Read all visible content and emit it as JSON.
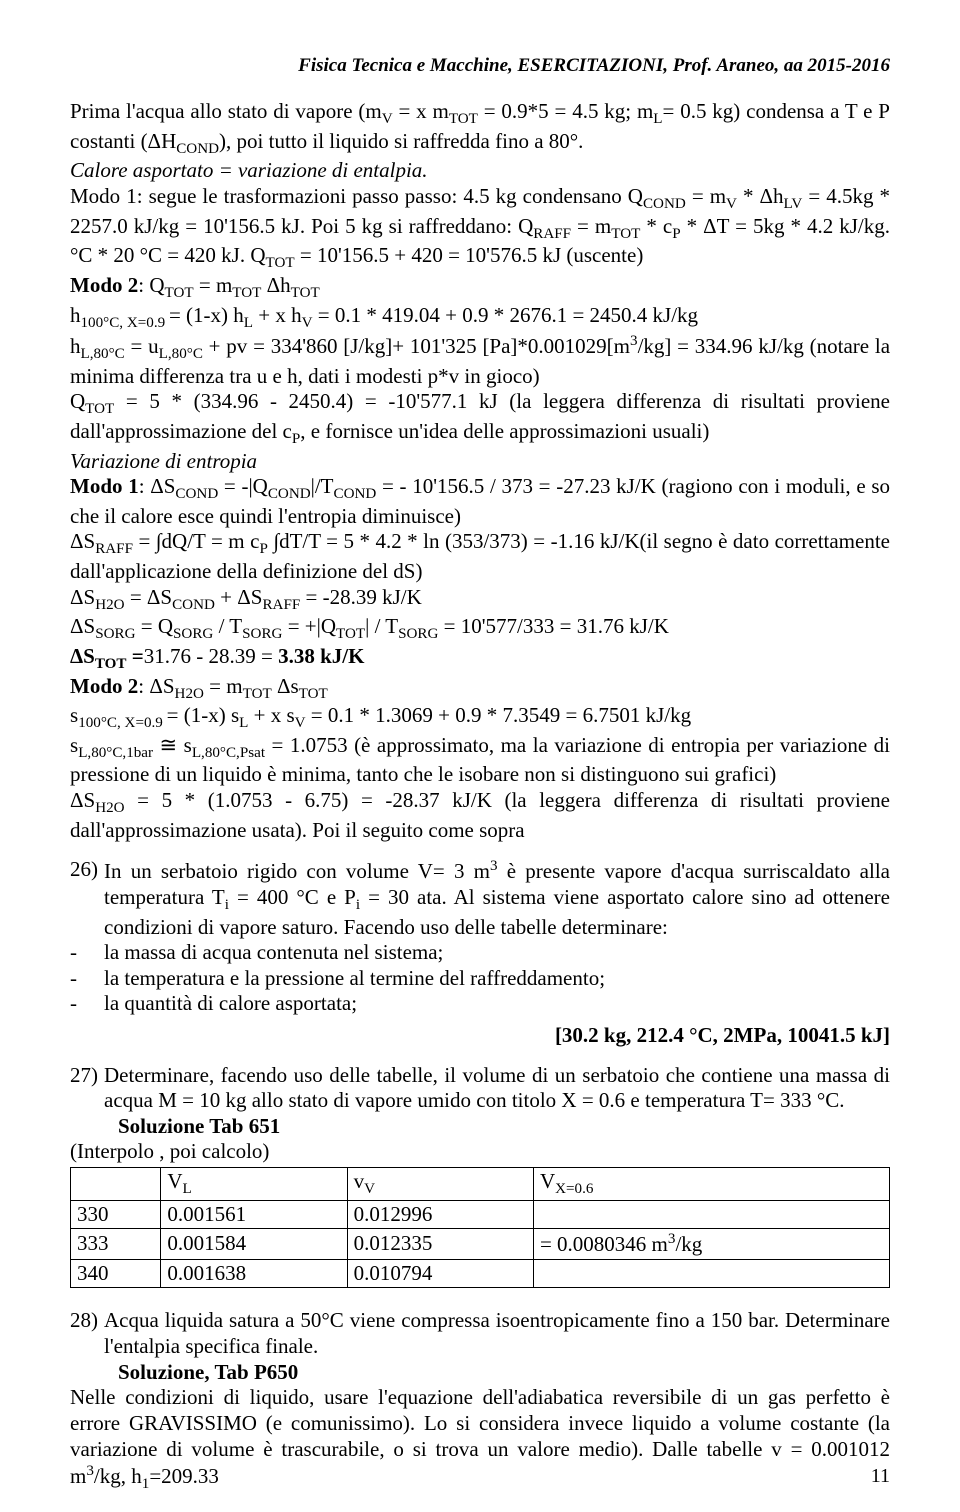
{
  "header": "Fisica Tecnica e Macchine,  ESERCITAZIONI,  Prof. Araneo, aa 2015-2016",
  "p1a": "Prima l'acqua allo stato di vapore (m",
  "p1b": " = x m",
  "p1c": " = 0.9*5 = 4.5 kg; m",
  "p1d": "= 0.5 kg) condensa a T e P costanti (ΔH",
  "p1e": "), poi tutto il liquido si raffredda fino a 80°.",
  "p2": "Calore asportato = variazione di entalpia.",
  "p3a": "Modo 1: segue le trasformazioni passo passo: 4.5 kg condensano Q",
  "p3b": " = m",
  "p3c": " * Δh",
  "p3d": " = 4.5kg * 2257.0 kJ/kg = 10'156.5 kJ. Poi 5 kg si raffreddano: Q",
  "p3e": " = m",
  "p3f": " * c",
  "p3g": " * ΔT = 5kg * 4.2 kJ/kg.°C * 20 °C = 420 kJ. Q",
  "p3h": " = 10'156.5 + 420 = 10'576.5 kJ (uscente)",
  "p4a": "Modo 2",
  "p4b": ": Q",
  "p4c": " = m",
  "p4d": " Δh",
  "p5a": "h",
  "p5b": "= (1-x) h",
  "p5c": " + x h",
  "p5d": " = 0.1 * 419.04 + 0.9 * 2676.1 = 2450.4 kJ/kg",
  "p6a": "h",
  "p6b": " = u",
  "p6c": " + pv = 334'860 [J/kg]+ 101'325 [Pa]*0.001029[m",
  "p6d": "/kg] = 334.96 kJ/kg (notare la minima differenza tra u e h, dati i modesti p*v in gioco)",
  "p7a": "Q",
  "p7b": " = 5 * (334.96 - 2450.4) = -10'577.1 kJ (la leggera differenza di risultati proviene dall'approssimazione del c",
  "p7c": ", e fornisce un'idea delle approssimazioni usuali)",
  "p8": "Variazione di entropia",
  "p9a": "Modo 1",
  "p9b": ": ΔS",
  "p9c": " = -|Q",
  "p9d": "|/T",
  "p9e": " = - 10'156.5 / 373 = -27.23 kJ/K (ragiono con i moduli, e so che il calore esce quindi l'entropia diminuisce)",
  "p10a": "ΔS",
  "p10b": " = ∫dQ/T = m c",
  "p10c": " ∫dT/T = 5 * 4.2 * ln (353/373) = -1.16 kJ/K(il segno è dato correttamente dall'applicazione della definizione del dS)",
  "p11a": "ΔS",
  "p11b": " = ΔS",
  "p11c": " + ΔS",
  "p11d": " = -28.39 kJ/K",
  "p12a": "ΔS",
  "p12b": " = Q",
  "p12c": " / T",
  "p12d": " = +|Q",
  "p12e": "| / T",
  "p12f": " = 10'577/333 = 31.76 kJ/K",
  "p13a": "ΔS",
  "p13b": " =",
  "p13c": "31.76 - 28.39 = ",
  "p13d": "3.38 kJ/K",
  "p14a": "Modo 2",
  "p14b": ": ΔS",
  "p14c": " = m",
  "p14d": " Δs",
  "p15a": "s",
  "p15b": "= (1-x) s",
  "p15c": " + x s",
  "p15d": " = 0.1 * 1.3069 + 0.9 * 7.3549 = 6.7501 kJ/kg",
  "p16a": "s",
  "p16b": " ≅ s",
  "p16c": " = 1.0753 (è approssimato, ma la variazione di entropia per variazione di pressione di un liquido è minima, tanto che le isobare non si distinguono sui grafici)",
  "p17a": "ΔS",
  "p17b": " = 5 * (1.0753 - 6.75) = -28.37 kJ/K (la leggera differenza di risultati proviene dall'approssimazione usata). Poi il seguito come sopra",
  "ex26_num": "26)",
  "ex26_a": "In un serbatoio rigido con volume V= 3 m",
  "ex26_b": " è presente vapore d'acqua surriscaldato alla temperatura T",
  "ex26_c": " = 400 °C e P",
  "ex26_d": " = 30 ata. Al sistema viene asportato calore sino ad ottenere condizioni di vapore saturo. Facendo uso delle tabelle determinare:",
  "li1": "la massa di acqua contenuta nel sistema;",
  "li2": "la temperatura e la pressione al termine del raffreddamento;",
  "li3": "la quantità di calore asportata;",
  "result26": "[30.2 kg, 212.4 °C, 2MPa, 10041.5 kJ]",
  "ex27_num": "27)",
  "ex27": "Determinare, facendo uso delle tabelle, il volume di un serbatoio che contiene una massa di acqua M = 10 kg allo stato di vapore umido con titolo X = 0.6 e temperatura T= 333 °C.",
  "sol27": "Soluzione Tab 651",
  "interp": "(Interpolo , poi calcolo)",
  "table": {
    "h1": "V",
    "h2": "v",
    "h3": "V",
    "hs1": "L",
    "hs2": "V",
    "hs3": "X=0.6",
    "r1c1": "330",
    "r1c2": "0.001561",
    "r1c3": "0.012996",
    "r1c4": "",
    "r2c1": "333",
    "r2c2": "0.001584",
    "r2c3": "0.012335",
    "r2c4a": "= 0.0080346 m",
    "r2c4b": "/kg",
    "r3c1": "340",
    "r3c2": "0.001638",
    "r3c3": "0.010794",
    "r3c4": ""
  },
  "ex28_num": "28)",
  "ex28": "Acqua liquida satura a 50°C viene compressa isoentropicamente fino a 150 bar. Determinare l'entalpia specifica finale.",
  "sol28": "Soluzione, Tab P650",
  "p28a": "Nelle condizioni di liquido, usare l'equazione dell'adiabatica reversibile di un gas perfetto è errore GRAVISSIMO (e comunissimo). Lo si considera invece liquido a volume costante (la variazione di volume è trascurabile, o si trova un valore medio). Dalle tabelle v = 0.001012 m",
  "p28b": "/kg, h",
  "p28c": "=209.33",
  "pagenum": "11"
}
